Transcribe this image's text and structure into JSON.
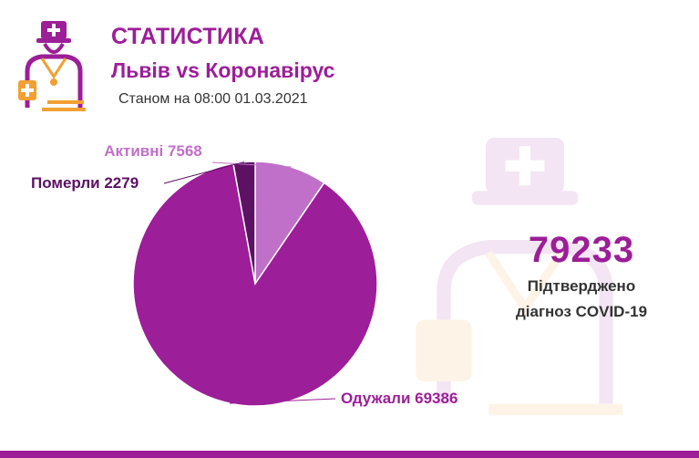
{
  "header": {
    "title": "СТАТИСТИКА",
    "subtitle": "Львів vs Коронавірус",
    "date_line": "Станом на 08:00 01.03.2021"
  },
  "icons": {
    "logo": "doctor-logo-icon",
    "watermark": "doctor-watermark-icon"
  },
  "colors": {
    "brand": "#9c1e98",
    "recovered": "#9c1e98",
    "died": "#5c1163",
    "active": "#c070c8",
    "orange": "#f2a033"
  },
  "summary": {
    "total": "79233",
    "label_line1": "Підтверджено",
    "label_line2": "діагноз COVID-19"
  },
  "chart_data": {
    "type": "pie",
    "slices": [
      {
        "label": "Активні",
        "value": 7568,
        "display": "Активні 7568",
        "color": "#c070c8"
      },
      {
        "label": "Одужали",
        "value": 69386,
        "display": "Одужали 69386",
        "color": "#9c1e98"
      },
      {
        "label": "Померли",
        "value": 2279,
        "display": "Померли 2279",
        "color": "#5c1163"
      }
    ]
  }
}
